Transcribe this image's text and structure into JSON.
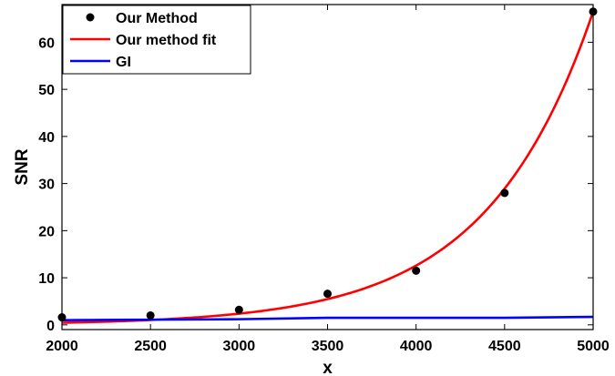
{
  "chart_data": {
    "type": "line",
    "title": "",
    "xlabel": "x",
    "ylabel": "SNR",
    "xlim": [
      2000,
      5000
    ],
    "ylim": [
      -1,
      68
    ],
    "xticks": [
      2000,
      2500,
      3000,
      3500,
      4000,
      4500,
      5000
    ],
    "yticks": [
      0,
      10,
      20,
      30,
      40,
      50,
      60
    ],
    "grid": false,
    "legend_position": "top-left",
    "series": [
      {
        "name": "Our Method",
        "kind": "scatter",
        "color": "#000000",
        "x": [
          2000,
          2500,
          3000,
          3500,
          4000,
          4500,
          5000
        ],
        "y": [
          1.6,
          2.0,
          3.2,
          6.6,
          11.5,
          28.0,
          66.5
        ]
      },
      {
        "name": "Our method fit",
        "kind": "line",
        "color": "#ff0000",
        "x": [
          2000,
          2250,
          2500,
          2750,
          3000,
          3250,
          3500,
          3750,
          4000,
          4250,
          4500,
          4750,
          5000
        ],
        "y": [
          0.45,
          0.72,
          1.15,
          1.55,
          2.3,
          3.6,
          5.6,
          8.4,
          12.9,
          19.5,
          29.3,
          44.4,
          66.5
        ]
      },
      {
        "name": "GI",
        "kind": "line",
        "color": "#0000ff",
        "x": [
          2000,
          2500,
          3000,
          3500,
          4000,
          4500,
          5000
        ],
        "y": [
          1.0,
          1.1,
          1.2,
          1.5,
          1.5,
          1.5,
          1.7
        ]
      }
    ]
  }
}
